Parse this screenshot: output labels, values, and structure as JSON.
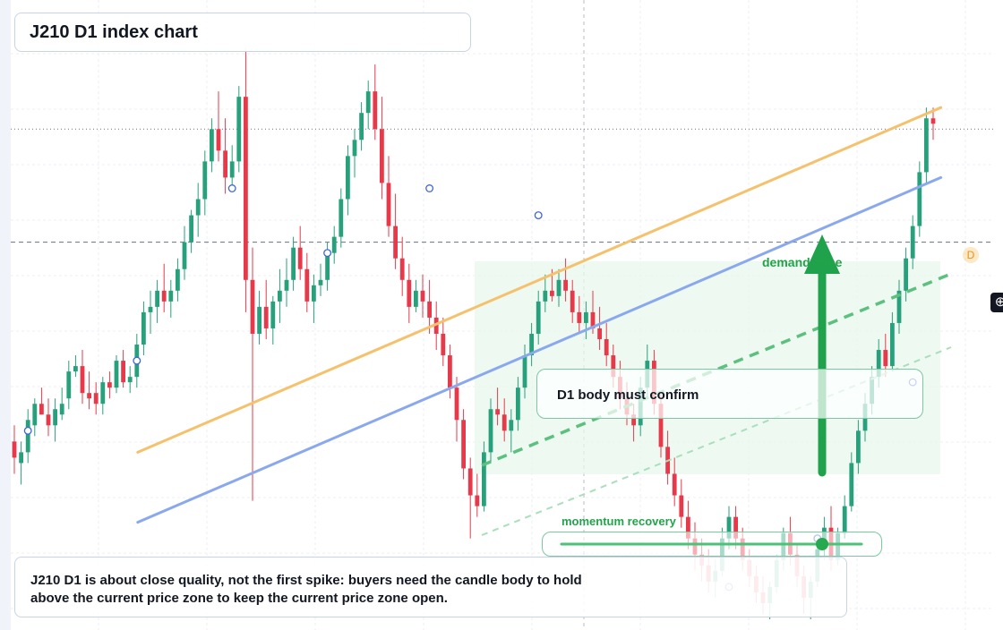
{
  "title": "J210 D1 index chart",
  "annotations": {
    "confirm": "D1 body must confirm",
    "demand": "demand zone",
    "momentum": "momentum recovery",
    "marker": "D",
    "caption": "J210 D1 is about close quality, not the first spike: buyers need the candle body to hold above the current price zone to keep the current price zone open."
  },
  "colors": {
    "up": "#26a17b",
    "down": "#e8394a",
    "trend_orange": "#f5c16c",
    "trend_blue": "#8aa8ee",
    "arrow": "#1fa24b",
    "zone": "#e8f7ee"
  },
  "icons": {
    "crosshair": "crosshair-icon"
  },
  "chart_data": {
    "type": "candlestick",
    "title": "J210 D1 index chart",
    "ylim": [
      0,
      100
    ],
    "grid": true,
    "candles": [
      {
        "o": 30,
        "h": 33,
        "l": 24,
        "c": 27
      },
      {
        "o": 26,
        "h": 30,
        "l": 22,
        "c": 28
      },
      {
        "o": 28,
        "h": 36,
        "l": 26,
        "c": 34
      },
      {
        "o": 33,
        "h": 38,
        "l": 31,
        "c": 37
      },
      {
        "o": 37,
        "h": 40,
        "l": 35,
        "c": 35
      },
      {
        "o": 35,
        "h": 38,
        "l": 31,
        "c": 33
      },
      {
        "o": 33,
        "h": 38,
        "l": 30,
        "c": 36
      },
      {
        "o": 35,
        "h": 40,
        "l": 34,
        "c": 37
      },
      {
        "o": 38,
        "h": 45,
        "l": 36,
        "c": 43
      },
      {
        "o": 43,
        "h": 46,
        "l": 42,
        "c": 44
      },
      {
        "o": 44,
        "h": 47,
        "l": 37,
        "c": 39
      },
      {
        "o": 39,
        "h": 43,
        "l": 36,
        "c": 38
      },
      {
        "o": 39,
        "h": 41,
        "l": 35,
        "c": 37
      },
      {
        "o": 37,
        "h": 42,
        "l": 35,
        "c": 41
      },
      {
        "o": 41,
        "h": 43,
        "l": 38,
        "c": 40
      },
      {
        "o": 40,
        "h": 46,
        "l": 39,
        "c": 45
      },
      {
        "o": 45,
        "h": 47,
        "l": 40,
        "c": 41
      },
      {
        "o": 41,
        "h": 44,
        "l": 39,
        "c": 42
      },
      {
        "o": 42,
        "h": 50,
        "l": 40,
        "c": 48
      },
      {
        "o": 48,
        "h": 56,
        "l": 46,
        "c": 54
      },
      {
        "o": 54,
        "h": 58,
        "l": 50,
        "c": 55
      },
      {
        "o": 55,
        "h": 60,
        "l": 52,
        "c": 58
      },
      {
        "o": 58,
        "h": 63,
        "l": 54,
        "c": 56
      },
      {
        "o": 56,
        "h": 60,
        "l": 53,
        "c": 58
      },
      {
        "o": 58,
        "h": 64,
        "l": 56,
        "c": 62
      },
      {
        "o": 62,
        "h": 70,
        "l": 60,
        "c": 67
      },
      {
        "o": 67,
        "h": 73,
        "l": 65,
        "c": 72
      },
      {
        "o": 72,
        "h": 78,
        "l": 68,
        "c": 75
      },
      {
        "o": 75,
        "h": 84,
        "l": 72,
        "c": 82
      },
      {
        "o": 82,
        "h": 90,
        "l": 80,
        "c": 88
      },
      {
        "o": 88,
        "h": 95,
        "l": 82,
        "c": 84
      },
      {
        "o": 84,
        "h": 90,
        "l": 76,
        "c": 79
      },
      {
        "o": 79,
        "h": 85,
        "l": 77,
        "c": 82
      },
      {
        "o": 82,
        "h": 96,
        "l": 80,
        "c": 94
      },
      {
        "o": 94,
        "h": 103,
        "l": 54,
        "c": 60
      },
      {
        "o": 60,
        "h": 66,
        "l": 19,
        "c": 50
      },
      {
        "o": 50,
        "h": 58,
        "l": 48,
        "c": 55
      },
      {
        "o": 55,
        "h": 60,
        "l": 49,
        "c": 51
      },
      {
        "o": 51,
        "h": 57,
        "l": 48,
        "c": 56
      },
      {
        "o": 56,
        "h": 62,
        "l": 52,
        "c": 58
      },
      {
        "o": 58,
        "h": 64,
        "l": 55,
        "c": 60
      },
      {
        "o": 60,
        "h": 68,
        "l": 58,
        "c": 66
      },
      {
        "o": 66,
        "h": 70,
        "l": 60,
        "c": 62
      },
      {
        "o": 62,
        "h": 65,
        "l": 54,
        "c": 56
      },
      {
        "o": 56,
        "h": 61,
        "l": 52,
        "c": 59
      },
      {
        "o": 59,
        "h": 63,
        "l": 57,
        "c": 60
      },
      {
        "o": 60,
        "h": 67,
        "l": 58,
        "c": 65
      },
      {
        "o": 65,
        "h": 70,
        "l": 63,
        "c": 68
      },
      {
        "o": 68,
        "h": 77,
        "l": 66,
        "c": 75
      },
      {
        "o": 75,
        "h": 85,
        "l": 72,
        "c": 83
      },
      {
        "o": 83,
        "h": 88,
        "l": 79,
        "c": 86
      },
      {
        "o": 86,
        "h": 93,
        "l": 84,
        "c": 91
      },
      {
        "o": 91,
        "h": 97,
        "l": 88,
        "c": 95
      },
      {
        "o": 95,
        "h": 100,
        "l": 86,
        "c": 88
      },
      {
        "o": 88,
        "h": 94,
        "l": 75,
        "c": 78
      },
      {
        "o": 78,
        "h": 83,
        "l": 68,
        "c": 70
      },
      {
        "o": 70,
        "h": 76,
        "l": 62,
        "c": 64
      },
      {
        "o": 64,
        "h": 68,
        "l": 57,
        "c": 60
      },
      {
        "o": 60,
        "h": 63,
        "l": 52,
        "c": 55
      },
      {
        "o": 55,
        "h": 60,
        "l": 54,
        "c": 58
      },
      {
        "o": 58,
        "h": 61,
        "l": 53,
        "c": 56
      },
      {
        "o": 56,
        "h": 60,
        "l": 50,
        "c": 53
      },
      {
        "o": 53,
        "h": 56,
        "l": 47,
        "c": 50
      },
      {
        "o": 50,
        "h": 53,
        "l": 44,
        "c": 46
      },
      {
        "o": 46,
        "h": 48,
        "l": 38,
        "c": 40
      },
      {
        "o": 40,
        "h": 42,
        "l": 30,
        "c": 34
      },
      {
        "o": 34,
        "h": 36,
        "l": 23,
        "c": 25
      },
      {
        "o": 25,
        "h": 27,
        "l": 12,
        "c": 20
      },
      {
        "o": 20,
        "h": 24,
        "l": 16,
        "c": 18
      },
      {
        "o": 18,
        "h": 30,
        "l": 17,
        "c": 28
      },
      {
        "o": 28,
        "h": 38,
        "l": 26,
        "c": 36
      },
      {
        "o": 36,
        "h": 40,
        "l": 33,
        "c": 35
      },
      {
        "o": 35,
        "h": 38,
        "l": 30,
        "c": 32
      },
      {
        "o": 32,
        "h": 36,
        "l": 28,
        "c": 34
      },
      {
        "o": 34,
        "h": 42,
        "l": 32,
        "c": 40
      },
      {
        "o": 40,
        "h": 48,
        "l": 38,
        "c": 46
      },
      {
        "o": 46,
        "h": 52,
        "l": 44,
        "c": 50
      },
      {
        "o": 50,
        "h": 58,
        "l": 48,
        "c": 56
      },
      {
        "o": 56,
        "h": 61,
        "l": 54,
        "c": 58
      },
      {
        "o": 58,
        "h": 62,
        "l": 56,
        "c": 57
      },
      {
        "o": 57,
        "h": 62,
        "l": 55,
        "c": 60
      },
      {
        "o": 60,
        "h": 64,
        "l": 56,
        "c": 58
      },
      {
        "o": 58,
        "h": 60,
        "l": 52,
        "c": 54
      },
      {
        "o": 54,
        "h": 57,
        "l": 50,
        "c": 52
      },
      {
        "o": 52,
        "h": 56,
        "l": 49,
        "c": 54
      },
      {
        "o": 54,
        "h": 58,
        "l": 50,
        "c": 51
      },
      {
        "o": 51,
        "h": 55,
        "l": 47,
        "c": 49
      },
      {
        "o": 49,
        "h": 52,
        "l": 44,
        "c": 46
      },
      {
        "o": 46,
        "h": 48,
        "l": 40,
        "c": 42
      },
      {
        "o": 42,
        "h": 45,
        "l": 36,
        "c": 38
      },
      {
        "o": 38,
        "h": 41,
        "l": 33,
        "c": 35
      },
      {
        "o": 35,
        "h": 37,
        "l": 30,
        "c": 33
      },
      {
        "o": 33,
        "h": 42,
        "l": 31,
        "c": 40
      },
      {
        "o": 40,
        "h": 48,
        "l": 38,
        "c": 45
      },
      {
        "o": 45,
        "h": 47,
        "l": 35,
        "c": 37
      },
      {
        "o": 37,
        "h": 39,
        "l": 27,
        "c": 29
      },
      {
        "o": 29,
        "h": 32,
        "l": 22,
        "c": 24
      },
      {
        "o": 24,
        "h": 27,
        "l": 18,
        "c": 20
      },
      {
        "o": 20,
        "h": 23,
        "l": 14,
        "c": 16
      },
      {
        "o": 16,
        "h": 19,
        "l": 10,
        "c": 12
      },
      {
        "o": 12,
        "h": 15,
        "l": 6,
        "c": 9
      },
      {
        "o": 9,
        "h": 12,
        "l": 4,
        "c": 7
      },
      {
        "o": 7,
        "h": 10,
        "l": 2,
        "c": 4
      },
      {
        "o": 4,
        "h": 8,
        "l": 1,
        "c": 6
      },
      {
        "o": 6,
        "h": 14,
        "l": 5,
        "c": 12
      },
      {
        "o": 12,
        "h": 18,
        "l": 10,
        "c": 16
      },
      {
        "o": 16,
        "h": 18,
        "l": 10,
        "c": 12
      },
      {
        "o": 12,
        "h": 14,
        "l": 6,
        "c": 8
      },
      {
        "o": 8,
        "h": 10,
        "l": 3,
        "c": 5
      },
      {
        "o": 5,
        "h": 7,
        "l": 0,
        "c": 2
      },
      {
        "o": 2,
        "h": 5,
        "l": -2,
        "c": 0
      },
      {
        "o": 0,
        "h": 4,
        "l": -3,
        "c": 3
      },
      {
        "o": 3,
        "h": 9,
        "l": 2,
        "c": 8
      },
      {
        "o": 8,
        "h": 14,
        "l": 6,
        "c": 13
      },
      {
        "o": 13,
        "h": 16,
        "l": 7,
        "c": 9
      },
      {
        "o": 9,
        "h": 11,
        "l": 3,
        "c": 5
      },
      {
        "o": 5,
        "h": 7,
        "l": -2,
        "c": 1
      },
      {
        "o": 1,
        "h": 5,
        "l": -3,
        "c": 4
      },
      {
        "o": 4,
        "h": 11,
        "l": 3,
        "c": 10
      },
      {
        "o": 10,
        "h": 16,
        "l": 8,
        "c": 14
      },
      {
        "o": 14,
        "h": 18,
        "l": 6,
        "c": 8
      },
      {
        "o": 8,
        "h": 14,
        "l": 7,
        "c": 13
      },
      {
        "o": 13,
        "h": 20,
        "l": 12,
        "c": 18
      },
      {
        "o": 18,
        "h": 28,
        "l": 17,
        "c": 26
      },
      {
        "o": 26,
        "h": 34,
        "l": 24,
        "c": 32
      },
      {
        "o": 32,
        "h": 39,
        "l": 30,
        "c": 37
      },
      {
        "o": 37,
        "h": 44,
        "l": 35,
        "c": 42
      },
      {
        "o": 42,
        "h": 49,
        "l": 40,
        "c": 47
      },
      {
        "o": 47,
        "h": 50,
        "l": 42,
        "c": 44
      },
      {
        "o": 44,
        "h": 54,
        "l": 43,
        "c": 52
      },
      {
        "o": 52,
        "h": 60,
        "l": 50,
        "c": 58
      },
      {
        "o": 58,
        "h": 66,
        "l": 56,
        "c": 64
      },
      {
        "o": 64,
        "h": 72,
        "l": 62,
        "c": 70
      },
      {
        "o": 70,
        "h": 82,
        "l": 68,
        "c": 80
      },
      {
        "o": 80,
        "h": 92,
        "l": 78,
        "c": 90
      },
      {
        "o": 90,
        "h": 92,
        "l": 86,
        "c": 89
      }
    ],
    "markers": [
      {
        "i": 2,
        "price": 32
      },
      {
        "i": 18,
        "price": 45
      },
      {
        "i": 32,
        "price": 77
      },
      {
        "i": 46,
        "price": 65
      },
      {
        "i": 61,
        "price": 77
      },
      {
        "i": 77,
        "price": 72
      },
      {
        "i": 105,
        "price": 3
      },
      {
        "i": 118,
        "price": 12
      },
      {
        "i": 132,
        "price": 41
      }
    ],
    "trendlines": [
      {
        "name": "resistance",
        "from": {
          "i": 18,
          "price": 28
        },
        "to": {
          "i": 136,
          "price": 92
        }
      },
      {
        "name": "support",
        "from": {
          "i": 18,
          "price": 15
        },
        "to": {
          "i": 136,
          "price": 79
        }
      }
    ],
    "levels": [
      {
        "style": "dotted",
        "price": 88
      },
      {
        "style": "dashed",
        "price": 67
      }
    ]
  }
}
